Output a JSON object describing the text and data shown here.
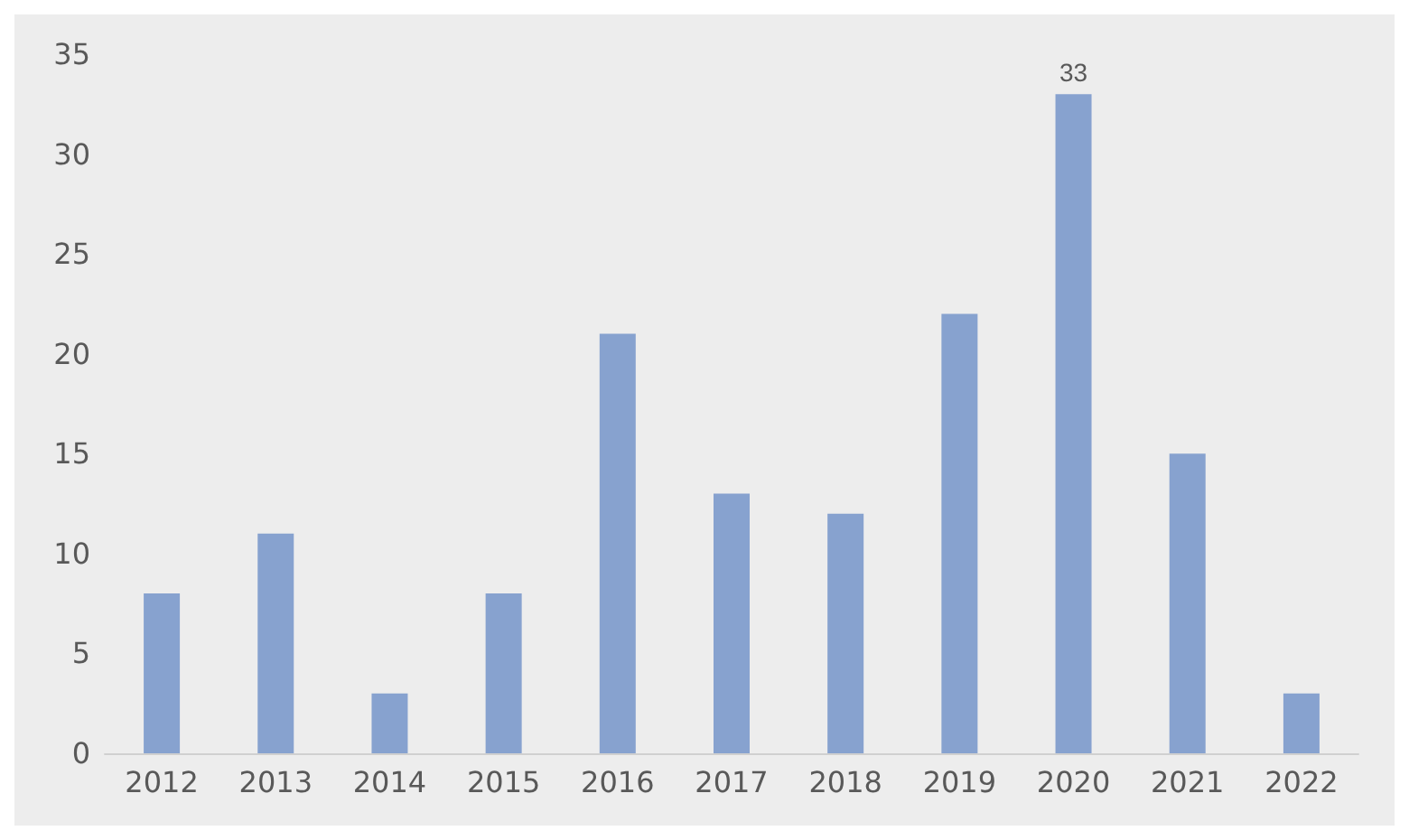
{
  "chart_data": {
    "type": "bar",
    "categories": [
      "2012",
      "2013",
      "2014",
      "2015",
      "2016",
      "2017",
      "2018",
      "2019",
      "2020",
      "2021",
      "2022"
    ],
    "values": [
      8,
      11,
      3,
      8,
      21,
      13,
      12,
      22,
      33,
      15,
      3
    ],
    "value_labels": [
      null,
      null,
      null,
      null,
      null,
      null,
      null,
      null,
      "33",
      null,
      null
    ],
    "color": "#87a2cf",
    "ylim": [
      0,
      35
    ],
    "yticks": [
      0,
      5,
      10,
      15,
      20,
      25,
      30,
      35
    ],
    "grid": false
  }
}
